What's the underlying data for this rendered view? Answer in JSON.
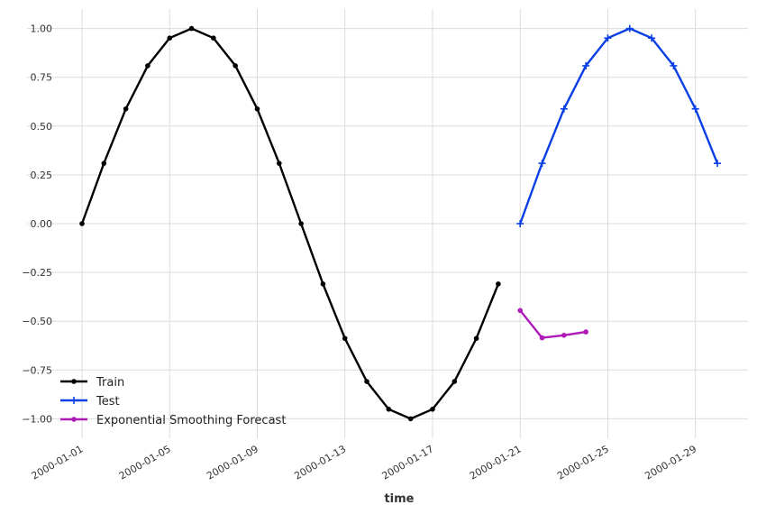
{
  "chart_data": {
    "type": "line",
    "title": "",
    "xlabel": "time",
    "ylabel": "",
    "grid": true,
    "legend_position": "lower-left",
    "xlim": [
      "2000-01-01",
      "2000-01-31"
    ],
    "ylim": [
      -1.1,
      1.1
    ],
    "x_ticks": [
      "2000-01-01",
      "2000-01-05",
      "2000-01-09",
      "2000-01-13",
      "2000-01-17",
      "2000-01-21",
      "2000-01-25",
      "2000-01-29"
    ],
    "y_ticks": [
      "1.00",
      "0.75",
      "0.50",
      "0.25",
      "0.00",
      "−0.25",
      "−0.50",
      "−0.75",
      "−1.00"
    ],
    "series": [
      {
        "name": "Train",
        "color": "#000000",
        "marker": "dot",
        "x": [
          "2000-01-01",
          "2000-01-02",
          "2000-01-03",
          "2000-01-04",
          "2000-01-05",
          "2000-01-06",
          "2000-01-07",
          "2000-01-08",
          "2000-01-09",
          "2000-01-10",
          "2000-01-11",
          "2000-01-12",
          "2000-01-13",
          "2000-01-14",
          "2000-01-15",
          "2000-01-16",
          "2000-01-17",
          "2000-01-18",
          "2000-01-19",
          "2000-01-20"
        ],
        "y": [
          0.0,
          0.309,
          0.588,
          0.809,
          0.951,
          1.0,
          0.951,
          0.809,
          0.588,
          0.309,
          0.0,
          -0.309,
          -0.588,
          -0.809,
          -0.951,
          -1.0,
          -0.951,
          -0.809,
          -0.588,
          -0.309
        ]
      },
      {
        "name": "Test",
        "color": "#0a3fe6",
        "marker": "plus",
        "x": [
          "2000-01-21",
          "2000-01-22",
          "2000-01-23",
          "2000-01-24",
          "2000-01-25",
          "2000-01-26",
          "2000-01-27",
          "2000-01-28",
          "2000-01-29",
          "2000-01-30"
        ],
        "y": [
          0.0,
          0.309,
          0.588,
          0.809,
          0.951,
          1.0,
          0.951,
          0.809,
          0.588,
          0.309
        ]
      },
      {
        "name": "Exponential Smoothing Forecast",
        "color": "#b01ab8",
        "marker": "dot",
        "x": [
          "2000-01-21",
          "2000-01-22",
          "2000-01-23",
          "2000-01-24"
        ],
        "y": [
          -0.445,
          -0.585,
          -0.572,
          -0.555
        ]
      }
    ]
  }
}
